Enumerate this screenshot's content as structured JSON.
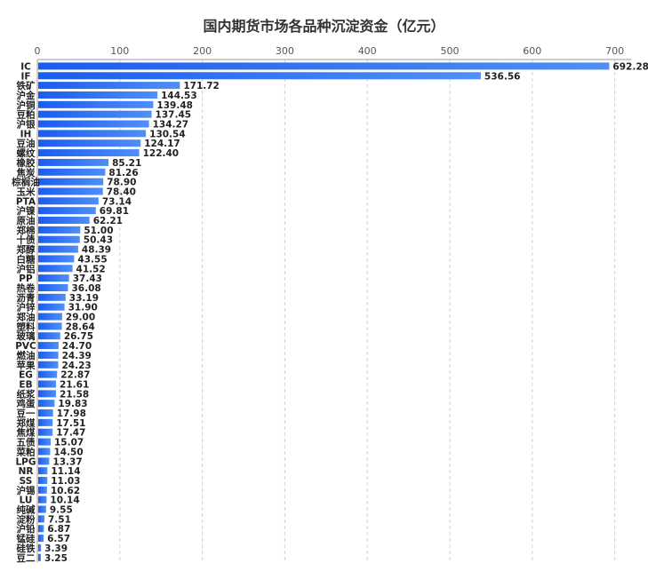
{
  "chart_data": {
    "type": "bar",
    "orientation": "horizontal",
    "title": "国内期货市场各品种沉淀资金（亿元）",
    "xlim": [
      0,
      720
    ],
    "xticks": [
      0,
      100,
      200,
      300,
      400,
      500,
      600,
      700
    ],
    "grid": true,
    "bar_color": "#1f63f0",
    "categories": [
      "IC",
      "IF",
      "铁矿",
      "沪金",
      "沪铜",
      "豆粕",
      "沪银",
      "IH",
      "豆油",
      "螺纹",
      "橡胶",
      "焦炭",
      "棕榈油",
      "玉米",
      "PTA",
      "沪镍",
      "原油",
      "郑棉",
      "十债",
      "郑醇",
      "白糖",
      "沪铝",
      "PP",
      "热卷",
      "沥青",
      "沪锌",
      "郑油",
      "塑料",
      "玻璃",
      "PVC",
      "燃油",
      "苹果",
      "EG",
      "EB",
      "纸浆",
      "鸡蛋",
      "豆一",
      "郑煤",
      "焦煤",
      "五债",
      "菜粕",
      "LPG",
      "NR",
      "SS",
      "沪锡",
      "LU",
      "纯碱",
      "淀粉",
      "沪铅",
      "锰硅",
      "硅铁",
      "豆二"
    ],
    "values": [
      692.28,
      536.56,
      171.72,
      144.53,
      139.48,
      137.45,
      134.27,
      130.54,
      124.17,
      122.4,
      85.21,
      81.26,
      78.9,
      78.4,
      73.14,
      69.81,
      62.21,
      51.0,
      50.43,
      48.39,
      43.55,
      41.52,
      37.43,
      36.08,
      33.19,
      31.9,
      29.0,
      28.64,
      26.75,
      24.7,
      24.39,
      24.23,
      22.87,
      21.61,
      21.58,
      19.83,
      17.98,
      17.51,
      17.47,
      15.07,
      14.5,
      13.37,
      11.14,
      11.03,
      10.62,
      10.14,
      9.55,
      7.51,
      6.87,
      6.57,
      3.39,
      3.25
    ],
    "value_labels": [
      "692.28",
      "536.56",
      "171.72",
      "144.53",
      "139.48",
      "137.45",
      "134.27",
      "130.54",
      "124.17",
      "122.40",
      "85.21",
      "81.26",
      "78.90",
      "78.40",
      "73.14",
      "69.81",
      "62.21",
      "51.00",
      "50.43",
      "48.39",
      "43.55",
      "41.52",
      "37.43",
      "36.08",
      "33.19",
      "31.90",
      "29.00",
      "28.64",
      "26.75",
      "24.70",
      "24.39",
      "24.23",
      "22.87",
      "21.61",
      "21.58",
      "19.83",
      "17.98",
      "17.51",
      "17.47",
      "15.07",
      "14.50",
      "13.37",
      "11.14",
      "11.03",
      "10.62",
      "10.14",
      "9.55",
      "7.51",
      "6.87",
      "6.57",
      "3.39",
      "3.25"
    ]
  }
}
